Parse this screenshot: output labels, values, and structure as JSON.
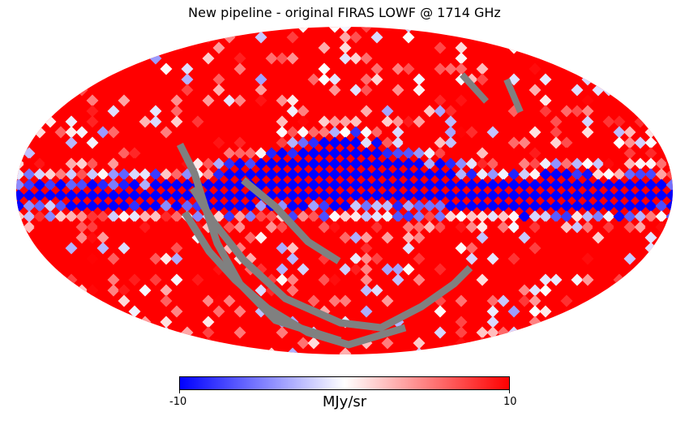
{
  "title": "New pipeline - original FIRAS LOWF @ 1714 GHz",
  "projection": "mollweide",
  "colormap": {
    "name": "bwr",
    "low_color": "#0000ff",
    "mid_color": "#ffffff",
    "high_color": "#ff0000",
    "masked_color": "#808080",
    "min": -10,
    "max": 10
  },
  "colorbar": {
    "min_label": "-10",
    "max_label": "10",
    "unit": "MJy/sr"
  }
}
